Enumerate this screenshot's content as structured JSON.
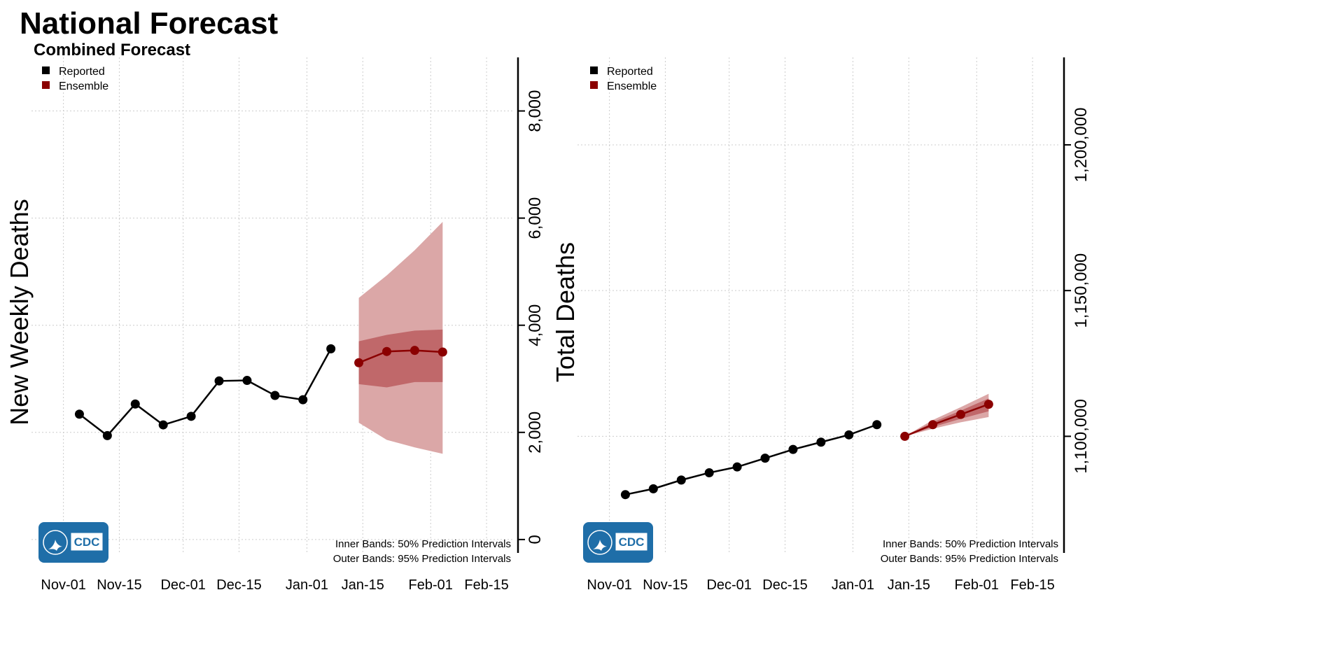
{
  "header": {
    "title": "National Forecast",
    "subtitle": "Combined Forecast"
  },
  "legend": {
    "reported": "Reported",
    "ensemble": "Ensemble"
  },
  "colors": {
    "reported": "#000000",
    "ensemble": "#8b0000",
    "outer_band": "#dba7a7",
    "inner_band": "#c0686a",
    "grid": "#cccccc",
    "logo": "#1f6ea8"
  },
  "band_notes": {
    "inner": "Inner Bands: 50% Prediction Intervals",
    "outer": "Outer Bands: 95% Prediction Intervals"
  },
  "logo": {
    "text": "CDC",
    "icon": "hhs-eagle-icon"
  },
  "chart_data": [
    {
      "type": "line",
      "ylabel": "New Weekly Deaths",
      "xlabel": "",
      "x_ticks": [
        "Nov-01",
        "Nov-15",
        "Dec-01",
        "Dec-15",
        "Jan-01",
        "Jan-15",
        "Feb-01",
        "Feb-15"
      ],
      "x_tick_dates": [
        "2022-11-01",
        "2022-11-15",
        "2022-12-01",
        "2022-12-15",
        "2023-01-01",
        "2023-01-15",
        "2023-02-01",
        "2023-02-15"
      ],
      "y_ticks": [
        0,
        2000,
        4000,
        6000,
        8000
      ],
      "y_tick_labels": [
        "0",
        "2,000",
        "4,000",
        "6,000",
        "8,000"
      ],
      "ylim": [
        -250,
        9000
      ],
      "xlim": [
        "2022-10-24",
        "2023-02-22"
      ],
      "grid": true,
      "legend_position": "top-left",
      "series": [
        {
          "name": "Reported",
          "dates": [
            "2022-11-05",
            "2022-11-12",
            "2022-11-19",
            "2022-11-26",
            "2022-12-03",
            "2022-12-10",
            "2022-12-17",
            "2022-12-24",
            "2022-12-31",
            "2023-01-07"
          ],
          "values": [
            2340,
            1940,
            2530,
            2140,
            2300,
            2960,
            2970,
            2690,
            2610,
            3560
          ]
        },
        {
          "name": "Ensemble",
          "dates": [
            "2023-01-14",
            "2023-01-21",
            "2023-01-28",
            "2023-02-04"
          ],
          "values": [
            3300,
            3510,
            3530,
            3500
          ],
          "lower_50": [
            2900,
            2840,
            2940,
            2940
          ],
          "upper_50": [
            3700,
            3820,
            3900,
            3920
          ],
          "lower_95": [
            2180,
            1860,
            1720,
            1600
          ],
          "upper_95": [
            4510,
            4930,
            5400,
            5930
          ]
        }
      ]
    },
    {
      "type": "line",
      "ylabel": "Total Deaths",
      "xlabel": "",
      "x_ticks": [
        "Nov-01",
        "Nov-15",
        "Dec-01",
        "Dec-15",
        "Jan-01",
        "Jan-15",
        "Feb-01",
        "Feb-15"
      ],
      "x_tick_dates": [
        "2022-11-01",
        "2022-11-15",
        "2022-12-01",
        "2022-12-15",
        "2023-01-01",
        "2023-01-15",
        "2023-02-01",
        "2023-02-15"
      ],
      "y_ticks": [
        1100000,
        1150000,
        1200000
      ],
      "y_tick_labels": [
        "1,100,000",
        "1,150,000",
        "1,200,000"
      ],
      "ylim": [
        1060000,
        1230000
      ],
      "xlim": [
        "2022-10-24",
        "2023-02-22"
      ],
      "grid": true,
      "legend_position": "top-left",
      "series": [
        {
          "name": "Reported",
          "dates": [
            "2022-11-05",
            "2022-11-12",
            "2022-11-19",
            "2022-11-26",
            "2022-12-03",
            "2022-12-10",
            "2022-12-17",
            "2022-12-24",
            "2022-12-31",
            "2023-01-07"
          ],
          "values": [
            1080000,
            1082000,
            1085000,
            1087500,
            1089500,
            1092500,
            1095500,
            1098000,
            1100500,
            1104000
          ]
        },
        {
          "name": "Ensemble",
          "dates": [
            "2023-01-14",
            "2023-01-21",
            "2023-01-28",
            "2023-02-04"
          ],
          "values": [
            1100000,
            1104000,
            1107500,
            1111000
          ],
          "lower_50": [
            1100000,
            1103200,
            1106000,
            1108600
          ],
          "upper_50": [
            1100000,
            1104800,
            1108800,
            1113000
          ],
          "lower_95": [
            1100000,
            1102600,
            1104800,
            1106600
          ],
          "upper_95": [
            1100000,
            1105600,
            1110000,
            1114600
          ]
        }
      ]
    }
  ]
}
